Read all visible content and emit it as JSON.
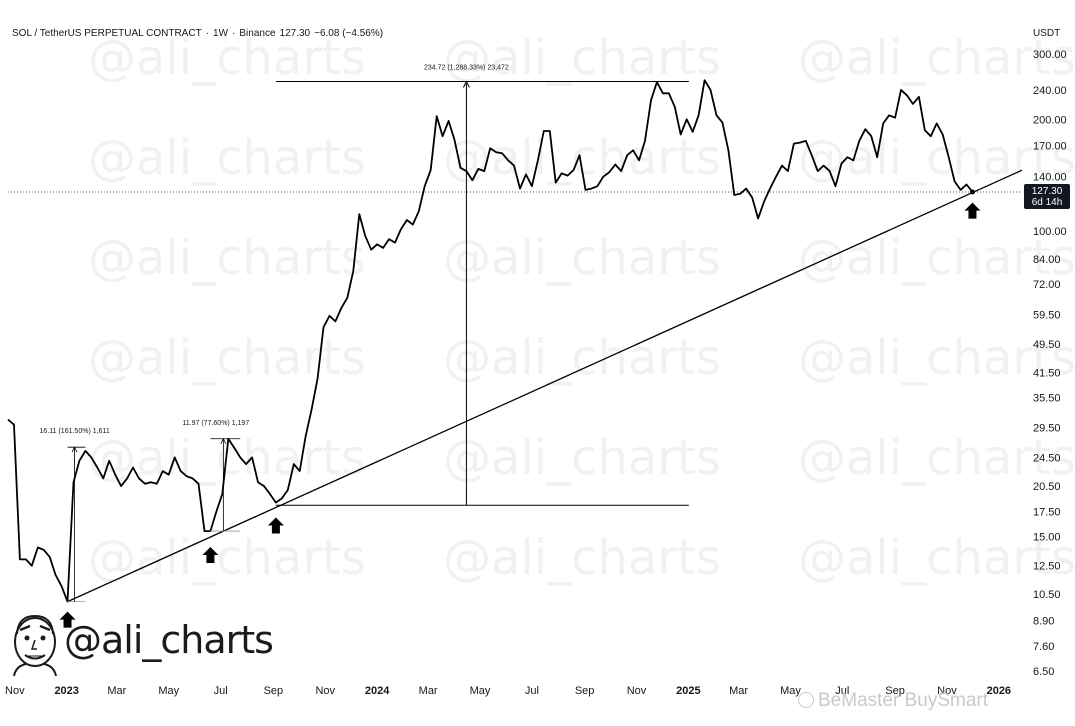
{
  "header": {
    "symbol": "SOL / TetherUS PERPETUAL CONTRACT",
    "interval": "1W",
    "exchange": "Binance",
    "last": "127.30",
    "change": "−6.08 (−4.56%)"
  },
  "currency": "USDT",
  "price_badge": {
    "price": "127.30",
    "countdown": "6d 14h"
  },
  "watermark_text": "@ali_charts",
  "footer_watermark": "BeMaster BuySmart",
  "logo": {
    "handle": "@ali_charts"
  },
  "colors": {
    "line": "#000000",
    "text": "#131722",
    "badge_bg": "#131722",
    "badge_text": "#ffffff",
    "grid_dash": "#555555"
  },
  "icons": [
    "up-arrow-icon",
    "avatar-face-icon",
    "bemaster-logo-icon"
  ],
  "chart_data": {
    "type": "line",
    "title": "",
    "y_scale": "log",
    "ylim": [
      6.5,
      310
    ],
    "y_ticks": [
      "300.00",
      "240.00",
      "200.00",
      "170.00",
      "140.00",
      "100.00",
      "84.00",
      "72.00",
      "59.50",
      "49.50",
      "41.50",
      "35.50",
      "29.50",
      "24.50",
      "20.50",
      "17.50",
      "15.00",
      "12.50",
      "10.50",
      "8.90",
      "7.60",
      "6.50"
    ],
    "x_ticks": [
      "Nov",
      "2023",
      "Mar",
      "May",
      "Jul",
      "Sep",
      "Nov",
      "2024",
      "Mar",
      "May",
      "Jul",
      "Sep",
      "Nov",
      "2025",
      "Mar",
      "May",
      "Jul",
      "Sep",
      "Nov",
      "2026"
    ],
    "x_tick_bold": [
      "2023",
      "2024",
      "2025",
      "2026"
    ],
    "xlim": [
      "2022-10-24",
      "2026-02-09"
    ],
    "series": [
      {
        "values": [
          [
            "2022-10-24",
            31
          ],
          [
            "2022-10-31",
            30
          ],
          [
            "2022-11-07",
            13
          ],
          [
            "2022-11-14",
            13
          ],
          [
            "2022-11-21",
            12.5
          ],
          [
            "2022-11-28",
            14
          ],
          [
            "2022-12-05",
            13.8
          ],
          [
            "2022-12-12",
            13.2
          ],
          [
            "2022-12-19",
            11.8
          ],
          [
            "2022-12-26",
            11
          ],
          [
            "2023-01-02",
            10
          ],
          [
            "2023-01-09",
            21
          ],
          [
            "2023-01-16",
            24
          ],
          [
            "2023-01-23",
            25.5
          ],
          [
            "2023-01-30",
            24.5
          ],
          [
            "2023-02-06",
            23
          ],
          [
            "2023-02-13",
            21.5
          ],
          [
            "2023-02-20",
            24
          ],
          [
            "2023-02-27",
            22
          ],
          [
            "2023-03-06",
            20.5
          ],
          [
            "2023-03-13",
            21.5
          ],
          [
            "2023-03-20",
            23
          ],
          [
            "2023-03-27",
            21.5
          ],
          [
            "2023-04-03",
            20.8
          ],
          [
            "2023-04-10",
            21
          ],
          [
            "2023-04-17",
            20.8
          ],
          [
            "2023-04-24",
            22.5
          ],
          [
            "2023-05-01",
            22
          ],
          [
            "2023-05-08",
            24.5
          ],
          [
            "2023-05-15",
            22.5
          ],
          [
            "2023-05-22",
            21.8
          ],
          [
            "2023-05-29",
            21.5
          ],
          [
            "2023-06-05",
            20.8
          ],
          [
            "2023-06-12",
            15.5
          ],
          [
            "2023-06-19",
            15.5
          ],
          [
            "2023-06-26",
            17.5
          ],
          [
            "2023-07-03",
            19.5
          ],
          [
            "2023-07-10",
            27.5
          ],
          [
            "2023-07-17",
            26
          ],
          [
            "2023-07-24",
            24.5
          ],
          [
            "2023-07-31",
            23.5
          ],
          [
            "2023-08-07",
            24.5
          ],
          [
            "2023-08-14",
            21
          ],
          [
            "2023-08-21",
            20.5
          ],
          [
            "2023-08-28",
            19.5
          ],
          [
            "2023-09-04",
            18.5
          ],
          [
            "2023-09-11",
            19
          ],
          [
            "2023-09-18",
            20
          ],
          [
            "2023-09-25",
            23.5
          ],
          [
            "2023-10-02",
            22.5
          ],
          [
            "2023-10-09",
            28
          ],
          [
            "2023-10-16",
            33
          ],
          [
            "2023-10-23",
            40
          ],
          [
            "2023-10-30",
            55
          ],
          [
            "2023-11-06",
            59
          ],
          [
            "2023-11-13",
            57
          ],
          [
            "2023-11-20",
            62
          ],
          [
            "2023-11-27",
            66
          ],
          [
            "2023-12-04",
            78
          ],
          [
            "2023-12-11",
            111
          ],
          [
            "2023-12-18",
            97
          ],
          [
            "2023-12-25",
            89
          ],
          [
            "2024-01-01",
            92
          ],
          [
            "2024-01-08",
            90
          ],
          [
            "2024-01-15",
            95
          ],
          [
            "2024-01-22",
            93
          ],
          [
            "2024-01-29",
            101
          ],
          [
            "2024-02-05",
            107
          ],
          [
            "2024-02-12",
            104
          ],
          [
            "2024-02-19",
            113
          ],
          [
            "2024-02-26",
            132
          ],
          [
            "2024-03-04",
            146
          ],
          [
            "2024-03-11",
            204
          ],
          [
            "2024-03-18",
            180
          ],
          [
            "2024-03-25",
            198
          ],
          [
            "2024-04-01",
            176
          ],
          [
            "2024-04-08",
            148
          ],
          [
            "2024-04-15",
            145
          ],
          [
            "2024-04-22",
            137
          ],
          [
            "2024-04-29",
            147
          ],
          [
            "2024-05-06",
            145
          ],
          [
            "2024-05-13",
            167
          ],
          [
            "2024-05-20",
            163
          ],
          [
            "2024-05-27",
            162
          ],
          [
            "2024-06-03",
            155
          ],
          [
            "2024-06-10",
            150
          ],
          [
            "2024-06-17",
            130
          ],
          [
            "2024-06-24",
            142
          ],
          [
            "2024-07-01",
            132
          ],
          [
            "2024-07-08",
            155
          ],
          [
            "2024-07-15",
            186
          ],
          [
            "2024-07-22",
            186
          ],
          [
            "2024-07-29",
            135
          ],
          [
            "2024-08-05",
            143
          ],
          [
            "2024-08-12",
            141
          ],
          [
            "2024-08-19",
            146
          ],
          [
            "2024-08-26",
            160
          ],
          [
            "2024-09-02",
            129
          ],
          [
            "2024-09-09",
            130
          ],
          [
            "2024-09-16",
            132
          ],
          [
            "2024-09-23",
            140
          ],
          [
            "2024-09-30",
            144
          ],
          [
            "2024-10-07",
            151
          ],
          [
            "2024-10-14",
            145
          ],
          [
            "2024-10-21",
            160
          ],
          [
            "2024-10-28",
            165
          ],
          [
            "2024-11-04",
            155
          ],
          [
            "2024-11-11",
            175
          ],
          [
            "2024-11-18",
            225
          ],
          [
            "2024-11-25",
            252
          ],
          [
            "2024-12-02",
            235
          ],
          [
            "2024-12-09",
            235
          ],
          [
            "2024-12-16",
            216
          ],
          [
            "2024-12-23",
            182
          ],
          [
            "2024-12-30",
            200
          ],
          [
            "2025-01-06",
            185
          ],
          [
            "2025-01-13",
            205
          ],
          [
            "2025-01-20",
            255
          ],
          [
            "2025-01-27",
            240
          ],
          [
            "2025-02-03",
            205
          ],
          [
            "2025-02-10",
            196
          ],
          [
            "2025-02-17",
            165
          ],
          [
            "2025-02-24",
            125
          ],
          [
            "2025-03-03",
            126
          ],
          [
            "2025-03-10",
            130
          ],
          [
            "2025-03-17",
            123
          ],
          [
            "2025-03-24",
            108
          ],
          [
            "2025-03-31",
            120
          ],
          [
            "2025-04-07",
            130
          ],
          [
            "2025-04-14",
            140
          ],
          [
            "2025-04-21",
            150
          ],
          [
            "2025-04-28",
            145
          ],
          [
            "2025-05-05",
            172
          ],
          [
            "2025-05-12",
            173
          ],
          [
            "2025-05-19",
            175
          ],
          [
            "2025-05-26",
            160
          ],
          [
            "2025-06-02",
            145
          ],
          [
            "2025-06-09",
            150
          ],
          [
            "2025-06-16",
            145
          ],
          [
            "2025-06-23",
            132
          ],
          [
            "2025-06-30",
            152
          ],
          [
            "2025-07-07",
            158
          ],
          [
            "2025-07-14",
            155
          ],
          [
            "2025-07-21",
            175
          ],
          [
            "2025-07-28",
            188
          ],
          [
            "2025-08-04",
            180
          ],
          [
            "2025-08-11",
            158
          ],
          [
            "2025-08-18",
            195
          ],
          [
            "2025-08-25",
            205
          ],
          [
            "2025-09-01",
            202
          ],
          [
            "2025-09-08",
            240
          ],
          [
            "2025-09-15",
            232
          ],
          [
            "2025-09-22",
            220
          ],
          [
            "2025-09-29",
            230
          ],
          [
            "2025-10-06",
            187
          ],
          [
            "2025-10-13",
            180
          ],
          [
            "2025-10-20",
            195
          ],
          [
            "2025-10-27",
            182
          ],
          [
            "2025-11-03",
            158
          ],
          [
            "2025-11-10",
            136
          ],
          [
            "2025-11-17",
            129
          ],
          [
            "2025-11-24",
            133.38
          ],
          [
            "2025-12-01",
            127.3
          ]
        ]
      }
    ],
    "trendline": [
      [
        "2023-01-02",
        10
      ],
      [
        "2026-01-26",
        145
      ]
    ],
    "annotations": [
      {
        "text": "16.11 (161.50%) 1,611",
        "from": [
          "2023-01-02",
          10
        ],
        "to": [
          "2023-01-09",
          26.1
        ]
      },
      {
        "text": "11.97 (77.60%) 1,197",
        "from": [
          "2023-06-19",
          15.5
        ],
        "to": [
          "2023-07-10",
          27.5
        ]
      },
      {
        "text": "234.72 (1,288.33%) 23,472",
        "from": [
          "2023-09-04",
          18.2
        ],
        "to": [
          "2024-11-25",
          252.9
        ]
      }
    ],
    "arrow_markers": [
      "2023-01-02",
      "2023-06-19",
      "2023-09-04",
      "2025-12-01"
    ]
  }
}
